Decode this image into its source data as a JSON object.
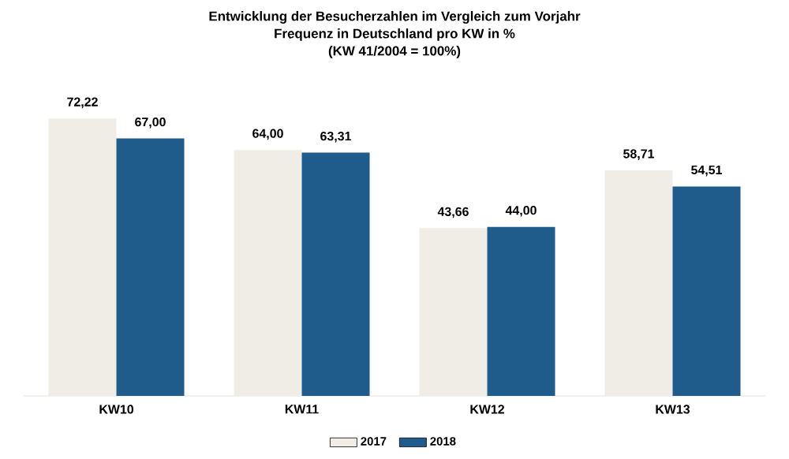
{
  "chart_data": {
    "type": "bar",
    "title": "Entwicklung der Besucherzahlen im Vergleich zum Vorjahr",
    "subtitle": "Frequenz in Deutschland pro KW in %",
    "annotations": [
      "(KW 41/2004 = 100%)"
    ],
    "categories": [
      "KW10",
      "KW11",
      "KW12",
      "KW13"
    ],
    "series": [
      {
        "name": "2017",
        "color": "#f0ede6",
        "values": [
          72.22,
          64.0,
          43.66,
          58.71
        ],
        "value_labels": [
          "72,22",
          "64,00",
          "43,66",
          "58,71"
        ]
      },
      {
        "name": "2018",
        "color": "#1f5c8b",
        "values": [
          67.0,
          63.31,
          44.0,
          54.51
        ],
        "value_labels": [
          "67,00",
          "63,31",
          "44,00",
          "54,51"
        ]
      }
    ],
    "legend": "bottom"
  }
}
